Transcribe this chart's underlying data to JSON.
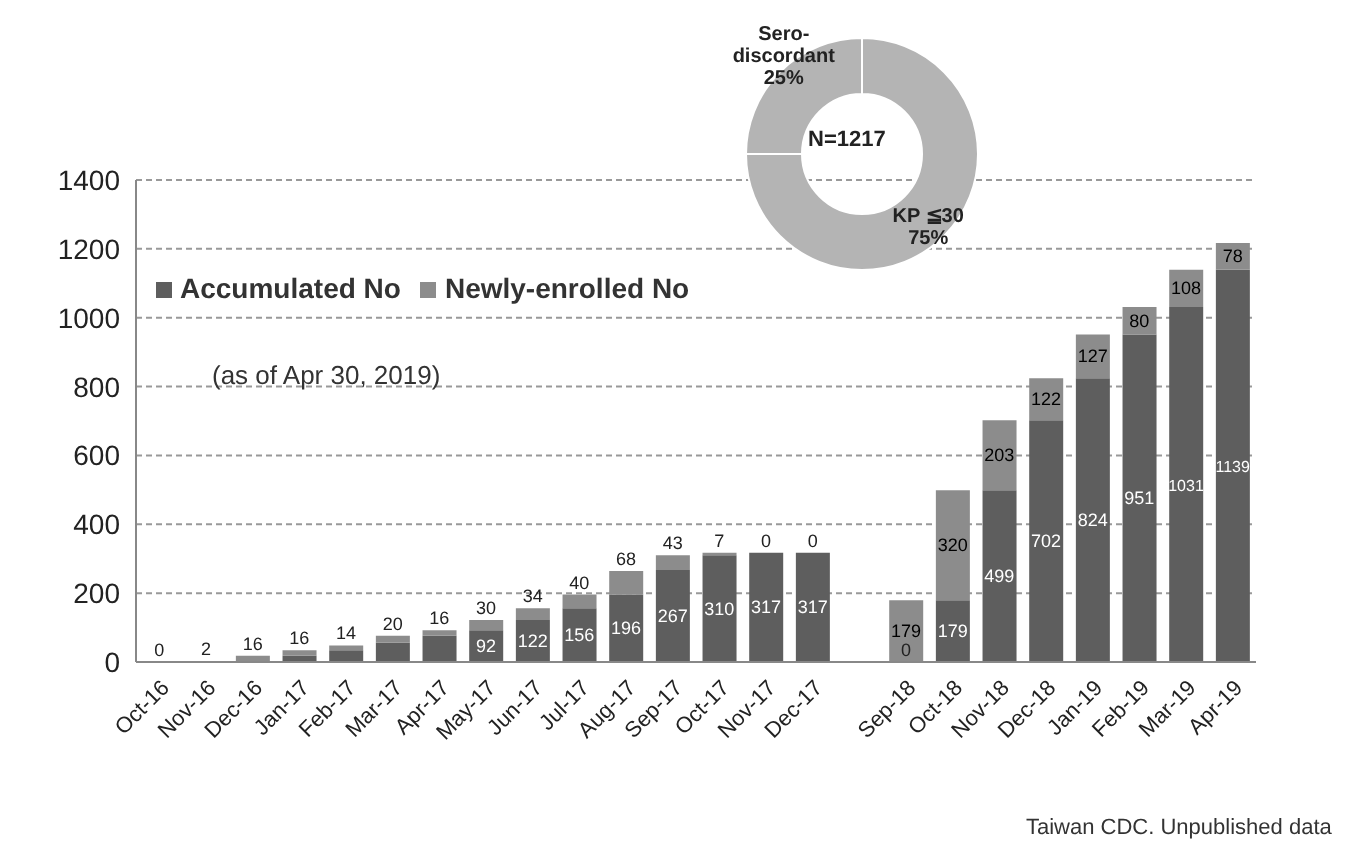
{
  "chart_data": [
    {
      "type": "bar",
      "stacked": true,
      "categories": [
        "Oct-16",
        "Nov-16",
        "Dec-16",
        "Jan-17",
        "Feb-17",
        "Mar-17",
        "Apr-17",
        "May-17",
        "Jun-17",
        "Jul-17",
        "Aug-17",
        "Sep-17",
        "Oct-17",
        "Nov-17",
        "Dec-17",
        null,
        "Sep-18",
        "Oct-18",
        "Nov-18",
        "Dec-18",
        "Jan-19",
        "Feb-19",
        "Mar-19",
        "Apr-19"
      ],
      "series": [
        {
          "name": "Accumulated No",
          "color": "#5e5e5e",
          "values": [
            0,
            0,
            2,
            18,
            34,
            56,
            76,
            92,
            122,
            156,
            196,
            267,
            310,
            317,
            317,
            null,
            0,
            179,
            499,
            702,
            824,
            951,
            1031,
            1139
          ],
          "value_labels": [
            "0",
            null,
            null,
            null,
            null,
            null,
            null,
            "92",
            "122",
            "156",
            "196",
            "267",
            "310",
            "317",
            "317",
            null,
            "0",
            "179",
            "499",
            "702",
            "824",
            "951",
            "1031",
            "1139"
          ]
        },
        {
          "name": "Newly-enrolled No",
          "color": "#8c8c8c",
          "values": [
            0,
            2,
            16,
            16,
            14,
            20,
            16,
            30,
            34,
            40,
            68,
            43,
            7,
            0,
            0,
            null,
            179,
            320,
            203,
            122,
            127,
            80,
            108,
            78
          ],
          "value_labels": [
            null,
            "2",
            "16",
            "16",
            "14",
            "20",
            "16",
            "30",
            "34",
            "40",
            "68",
            "43",
            "7",
            "0",
            "0",
            null,
            "179",
            "320",
            "203",
            "122",
            "127",
            "80",
            "108",
            "78"
          ]
        }
      ],
      "ylim": [
        0,
        1400
      ],
      "yticks": [
        0,
        200,
        400,
        600,
        800,
        1000,
        1200,
        1400
      ],
      "grid": "y",
      "legend": "top left",
      "annotations": [
        "(as of Apr 30, 2019)",
        "Taiwan CDC. Unpublished data"
      ]
    },
    {
      "type": "donut",
      "categories": [
        "Sero-discordant",
        "KP ≦30"
      ],
      "values": [
        25,
        75
      ],
      "colors": [
        "#b4b4b4",
        "#b4b4b4"
      ],
      "value_labels": [
        "25%",
        "75%"
      ],
      "annotations": [
        "N=1217"
      ]
    }
  ]
}
